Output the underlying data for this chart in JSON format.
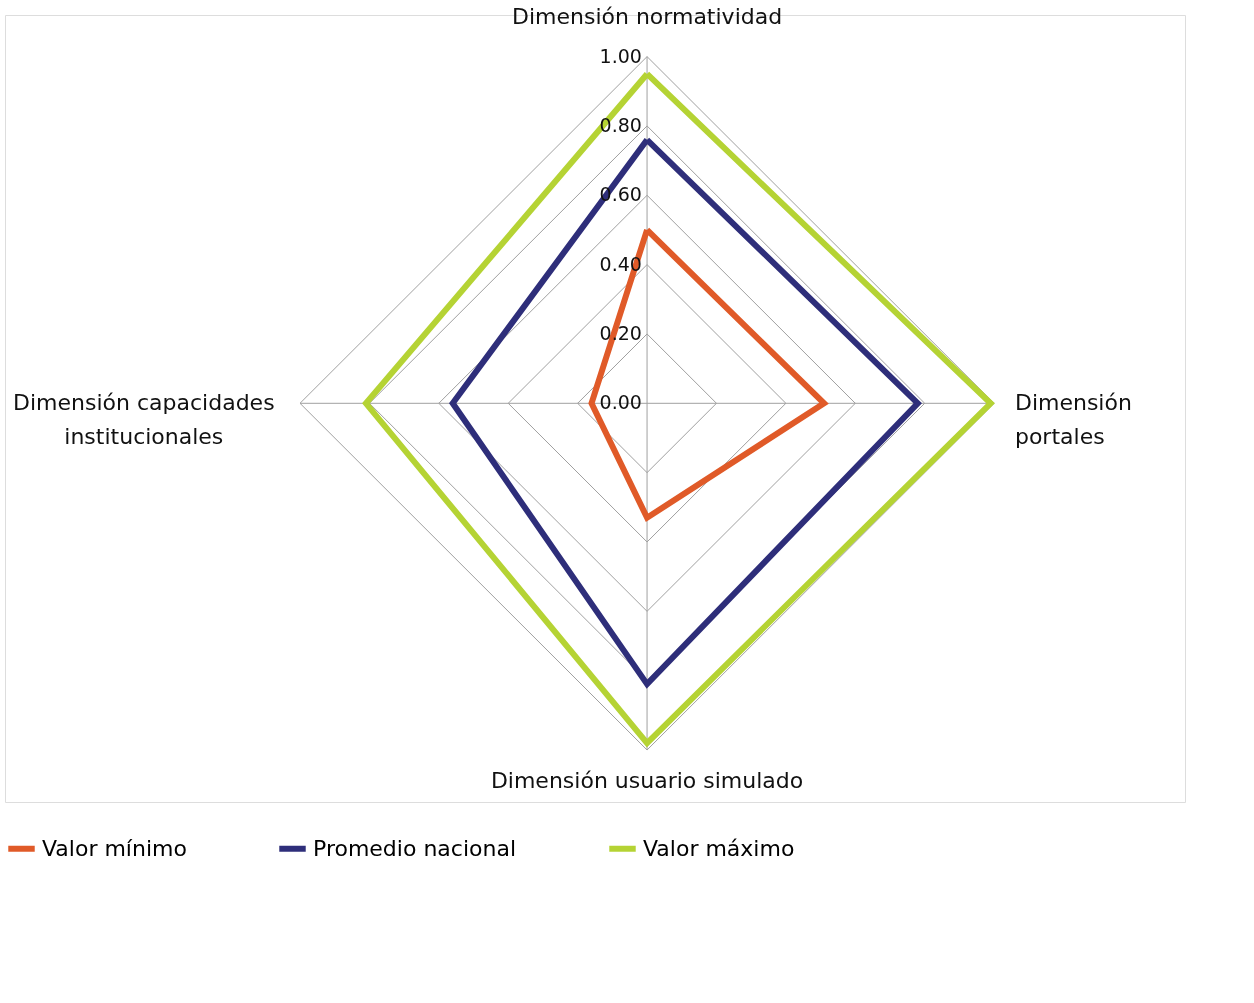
{
  "chart_data": {
    "type": "radar",
    "categories": [
      "Dimensión normatividad",
      "Dimensión portales",
      "Dimensión usuario simulado",
      "Dimensión capacidades institucionales"
    ],
    "series": [
      {
        "name": "Valor mínimo",
        "color": "#e05a28",
        "values": [
          0.5,
          0.51,
          0.33,
          0.16
        ]
      },
      {
        "name": "Promedio nacional",
        "color": "#2e2e7a",
        "values": [
          0.76,
          0.78,
          0.81,
          0.56
        ]
      },
      {
        "name": "Valor máximo",
        "color": "#b5d334",
        "values": [
          0.95,
          0.99,
          0.98,
          0.81
        ]
      }
    ],
    "ylim": [
      0,
      1
    ],
    "yticks": [
      {
        "value": 0,
        "label": "0.00"
      },
      {
        "value": 0.2,
        "label": "0.20"
      },
      {
        "value": 0.4,
        "label": "0.40"
      },
      {
        "value": 0.6,
        "label": "0.60"
      },
      {
        "value": 0.8,
        "label": "0.80"
      },
      {
        "value": 1.0,
        "label": "1.00"
      }
    ],
    "grid": true,
    "legend": "bottom"
  }
}
